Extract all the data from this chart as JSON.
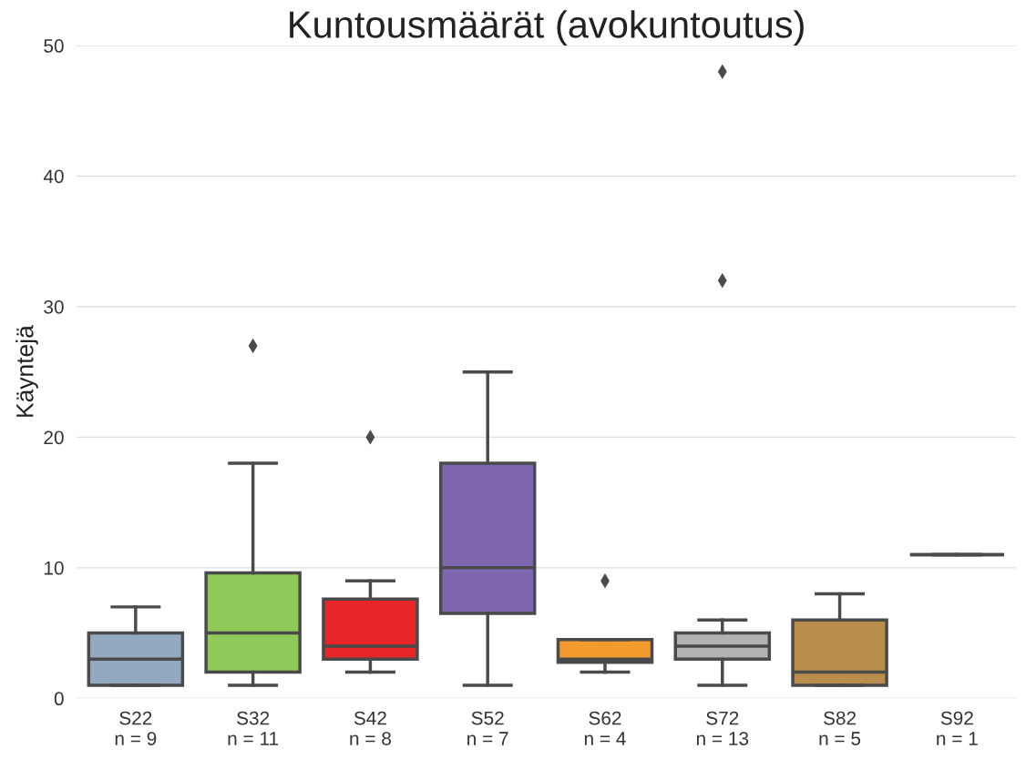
{
  "chart_data": {
    "type": "box",
    "title": "Kuntousmäärät (avokuntoutus)",
    "ylabel": "Käyntejä",
    "categories": [
      "S22\nn = 9",
      "S32\nn = 11",
      "S42\nn = 8",
      "S52\nn = 7",
      "S62\nn = 4",
      "S72\nn = 13",
      "S82\nn = 5",
      "S92\nn = 1"
    ],
    "colors": [
      "#93a9c0",
      "#8fc95a",
      "#e8262a",
      "#7e67ae",
      "#f39a2e",
      "#b3b3b5",
      "#b98d4c",
      "#4a4a4a"
    ],
    "boxes": [
      {
        "low": 1,
        "q1": 1,
        "median": 3,
        "q3": 5,
        "high": 7
      },
      {
        "low": 1,
        "q1": 2,
        "median": 5,
        "q3": 9.6,
        "high": 18,
        "outliers": [
          27
        ]
      },
      {
        "low": 2,
        "q1": 3,
        "median": 4,
        "q3": 7.6,
        "high": 9,
        "outliers": [
          20
        ]
      },
      {
        "low": 1,
        "q1": 6.5,
        "median": 10,
        "q3": 18,
        "high": 25
      },
      {
        "low": 2,
        "q1": 2.75,
        "median": 3,
        "q3": 4.5,
        "high": 4.5,
        "outliers": [
          9
        ]
      },
      {
        "low": 1,
        "q1": 3,
        "median": 4,
        "q3": 5,
        "high": 6,
        "outliers": [
          32,
          48
        ]
      },
      {
        "low": 1,
        "q1": 1,
        "median": 2,
        "q3": 6,
        "high": 8
      },
      {
        "low": 11,
        "q1": 11,
        "median": 11,
        "q3": 11,
        "high": 11
      }
    ],
    "ylim": [
      0,
      50
    ],
    "yticks": [
      0,
      10,
      20,
      30,
      40,
      50
    ],
    "grid": "y"
  }
}
